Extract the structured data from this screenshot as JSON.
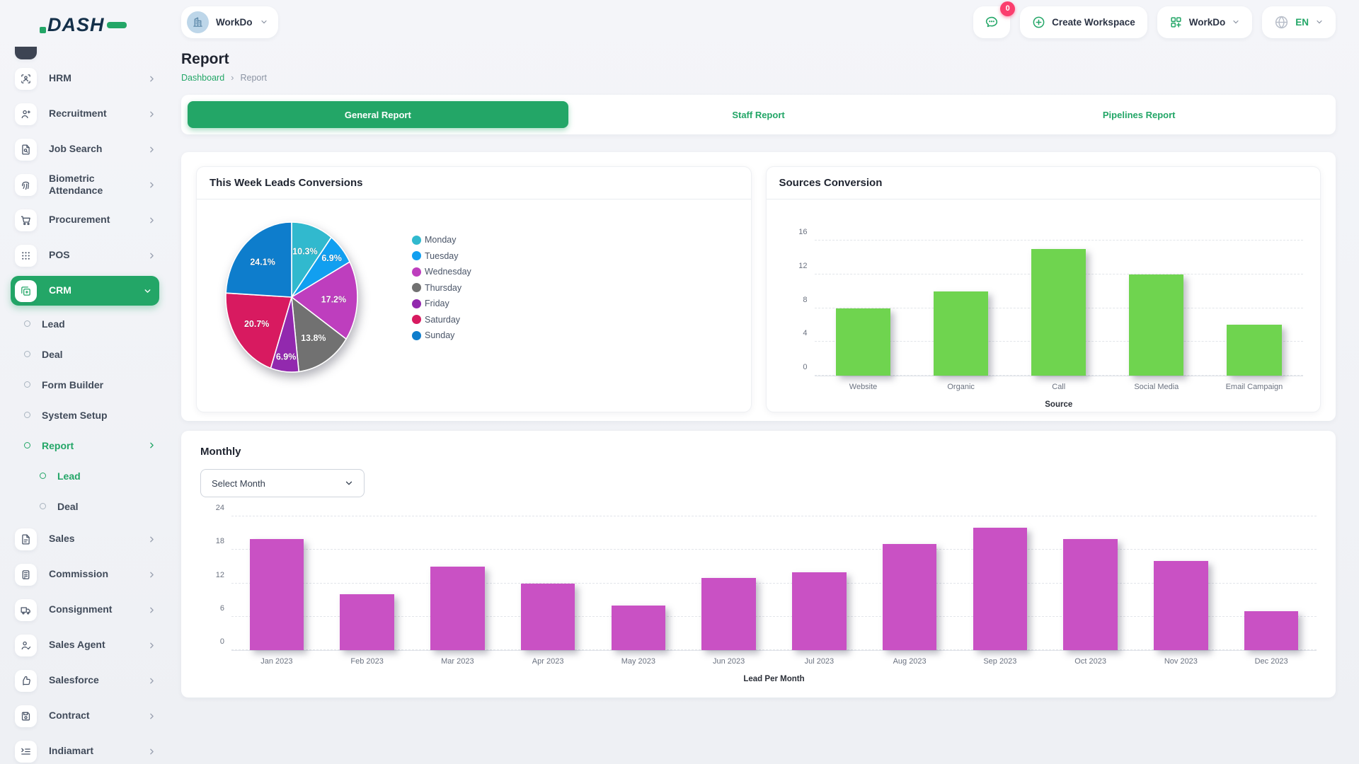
{
  "brand": {
    "logo_text": "DASH",
    "green": "#23A667",
    "navy": "#14304A"
  },
  "header": {
    "workspace_chip": {
      "label": "WorkDo"
    },
    "chat_badge": "0",
    "create_workspace_label": "Create Workspace",
    "workdo_menu_label": "WorkDo",
    "language": "EN"
  },
  "sidebar": {
    "items": [
      {
        "label": "HRM",
        "icon": "user-focus"
      },
      {
        "label": "Recruitment",
        "icon": "user-plus"
      },
      {
        "label": "Job Search",
        "icon": "file-search"
      },
      {
        "label": "Biometric Attendance",
        "icon": "fingerprint"
      },
      {
        "label": "Procurement",
        "icon": "cart"
      },
      {
        "label": "POS",
        "icon": "grid-dots"
      },
      {
        "label": "CRM",
        "icon": "copy-plus",
        "active": true,
        "expanded": true
      },
      {
        "label": "Lead",
        "sub": 1
      },
      {
        "label": "Deal",
        "sub": 1
      },
      {
        "label": "Form Builder",
        "sub": 1
      },
      {
        "label": "System Setup",
        "sub": 1
      },
      {
        "label": "Report",
        "sub": 1,
        "active": true,
        "chevron": true
      },
      {
        "label": "Lead",
        "sub": 2,
        "active": true
      },
      {
        "label": "Deal",
        "sub": 2
      },
      {
        "label": "Sales",
        "icon": "file"
      },
      {
        "label": "Commission",
        "icon": "calculator"
      },
      {
        "label": "Consignment",
        "icon": "truck"
      },
      {
        "label": "Sales Agent",
        "icon": "user-check"
      },
      {
        "label": "Salesforce",
        "icon": "thumbs-up"
      },
      {
        "label": "Contract",
        "icon": "save"
      },
      {
        "label": "Indiamart",
        "icon": "list-indent"
      }
    ]
  },
  "page": {
    "title": "Report",
    "breadcrumb": [
      "Dashboard",
      "Report"
    ],
    "tabs": [
      {
        "label": "General Report",
        "active": true
      },
      {
        "label": "Staff Report",
        "active": false
      },
      {
        "label": "Pipelines Report",
        "active": false
      }
    ]
  },
  "monthly": {
    "select_placeholder": "Select Month"
  },
  "chart_data": [
    {
      "type": "pie",
      "title": "This Week Leads Conversions",
      "labels": [
        "Monday",
        "Tuesday",
        "Wednesday",
        "Thursday",
        "Friday",
        "Saturday",
        "Sunday"
      ],
      "values": [
        10.3,
        6.9,
        17.2,
        13.8,
        6.9,
        20.7,
        24.1
      ],
      "value_suffix": "%",
      "colors": [
        "#31B9CE",
        "#119FF0",
        "#BE3EBE",
        "#717171",
        "#9229AE",
        "#D81A60",
        "#0E7DCC"
      ],
      "legend_position": "right"
    },
    {
      "type": "bar",
      "title": "Sources Conversion",
      "categories": [
        "Website",
        "Organic",
        "Call",
        "Social Media",
        "Email Campaign"
      ],
      "values": [
        8,
        10,
        15,
        12,
        6
      ],
      "xlabel": "Source",
      "ylabel": "",
      "ylim": [
        0,
        16
      ],
      "ytick_step": 4,
      "bar_color": "#6FD44F",
      "grid": "dashed"
    },
    {
      "type": "bar",
      "title": "Monthly",
      "categories": [
        "Jan 2023",
        "Feb 2023",
        "Mar 2023",
        "Apr 2023",
        "May 2023",
        "Jun 2023",
        "Jul 2023",
        "Aug 2023",
        "Sep 2023",
        "Oct 2023",
        "Nov 2023",
        "Dec 2023"
      ],
      "values": [
        20,
        10,
        15,
        12,
        8,
        13,
        14,
        19,
        22,
        20,
        16,
        7
      ],
      "xlabel": "Lead Per Month",
      "ylabel": "",
      "ylim": [
        0,
        24
      ],
      "ytick_step": 6,
      "bar_color": "#C951C4",
      "grid": "dashed"
    }
  ]
}
